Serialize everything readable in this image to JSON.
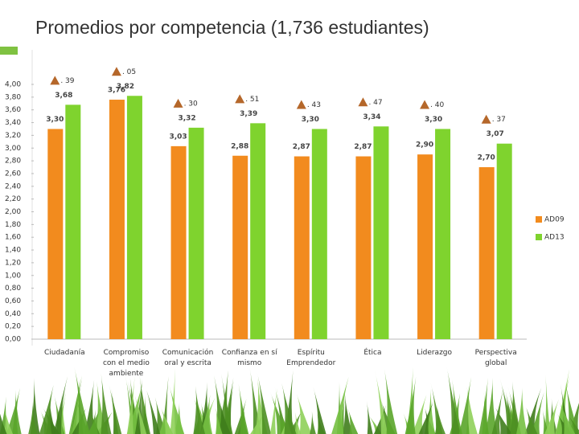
{
  "chart_data": {
    "type": "bar",
    "title": "Promedios por competencia (1,736 estudiantes)",
    "categories": [
      "Ciudadanía",
      "Compromiso\ncon el medio\nambiente",
      "Comunicación\noral y escrita",
      "Confianza en sí\nmismo",
      "Espíritu\nEmprendedor",
      "Ética",
      "Liderazgo",
      "Perspectiva\nglobal"
    ],
    "series": [
      {
        "name": "AD09",
        "color": "#f28b1e",
        "values": [
          3.3,
          3.76,
          3.03,
          2.88,
          2.87,
          2.87,
          2.9,
          2.7
        ],
        "value_labels": [
          "3,30",
          "3,76",
          "3,03",
          "2,88",
          "2,87",
          "2,87",
          "2,90",
          "2,70"
        ]
      },
      {
        "name": "AD13",
        "color": "#7fd32e",
        "values": [
          3.68,
          3.82,
          3.32,
          3.39,
          3.3,
          3.34,
          3.3,
          3.07
        ],
        "value_labels": [
          "3,68",
          "3,82",
          "3,32",
          "3,39",
          "3,30",
          "3,34",
          "3,30",
          "3,07"
        ]
      }
    ],
    "annotations": [
      ". 39",
      ". 05",
      ". 30",
      ". 51",
      ". 43",
      ". 47",
      ". 40",
      ". 37"
    ],
    "ylim": [
      0,
      4
    ],
    "yticks": [
      {
        "value": 0,
        "label": "0,00"
      },
      {
        "value": 0.2,
        "label": "0,20"
      },
      {
        "value": 0.4,
        "label": "0,40"
      },
      {
        "value": 0.6,
        "label": "0,60"
      },
      {
        "value": 0.8,
        "label": "0,80"
      },
      {
        "value": 1.0,
        "label": "1,00"
      },
      {
        "value": 1.2,
        "label": "1,20"
      },
      {
        "value": 1.4,
        "label": "1,40"
      },
      {
        "value": 1.6,
        "label": "1,60"
      },
      {
        "value": 1.8,
        "label": "1,80"
      },
      {
        "value": 2.0,
        "label": "2,00"
      },
      {
        "value": 2.2,
        "label": "2,20"
      },
      {
        "value": 2.4,
        "label": "2,40"
      },
      {
        "value": 2.6,
        "label": "2,60"
      },
      {
        "value": 2.8,
        "label": "2,80"
      },
      {
        "value": 3.0,
        "label": "3,00"
      },
      {
        "value": 3.2,
        "label": "3,20"
      },
      {
        "value": 3.4,
        "label": "3,40"
      },
      {
        "value": 3.6,
        "label": "3,60"
      },
      {
        "value": 3.8,
        "label": "3,80"
      },
      {
        "value": 4.0,
        "label": "4,00"
      }
    ],
    "grid": false,
    "legend": "right"
  }
}
